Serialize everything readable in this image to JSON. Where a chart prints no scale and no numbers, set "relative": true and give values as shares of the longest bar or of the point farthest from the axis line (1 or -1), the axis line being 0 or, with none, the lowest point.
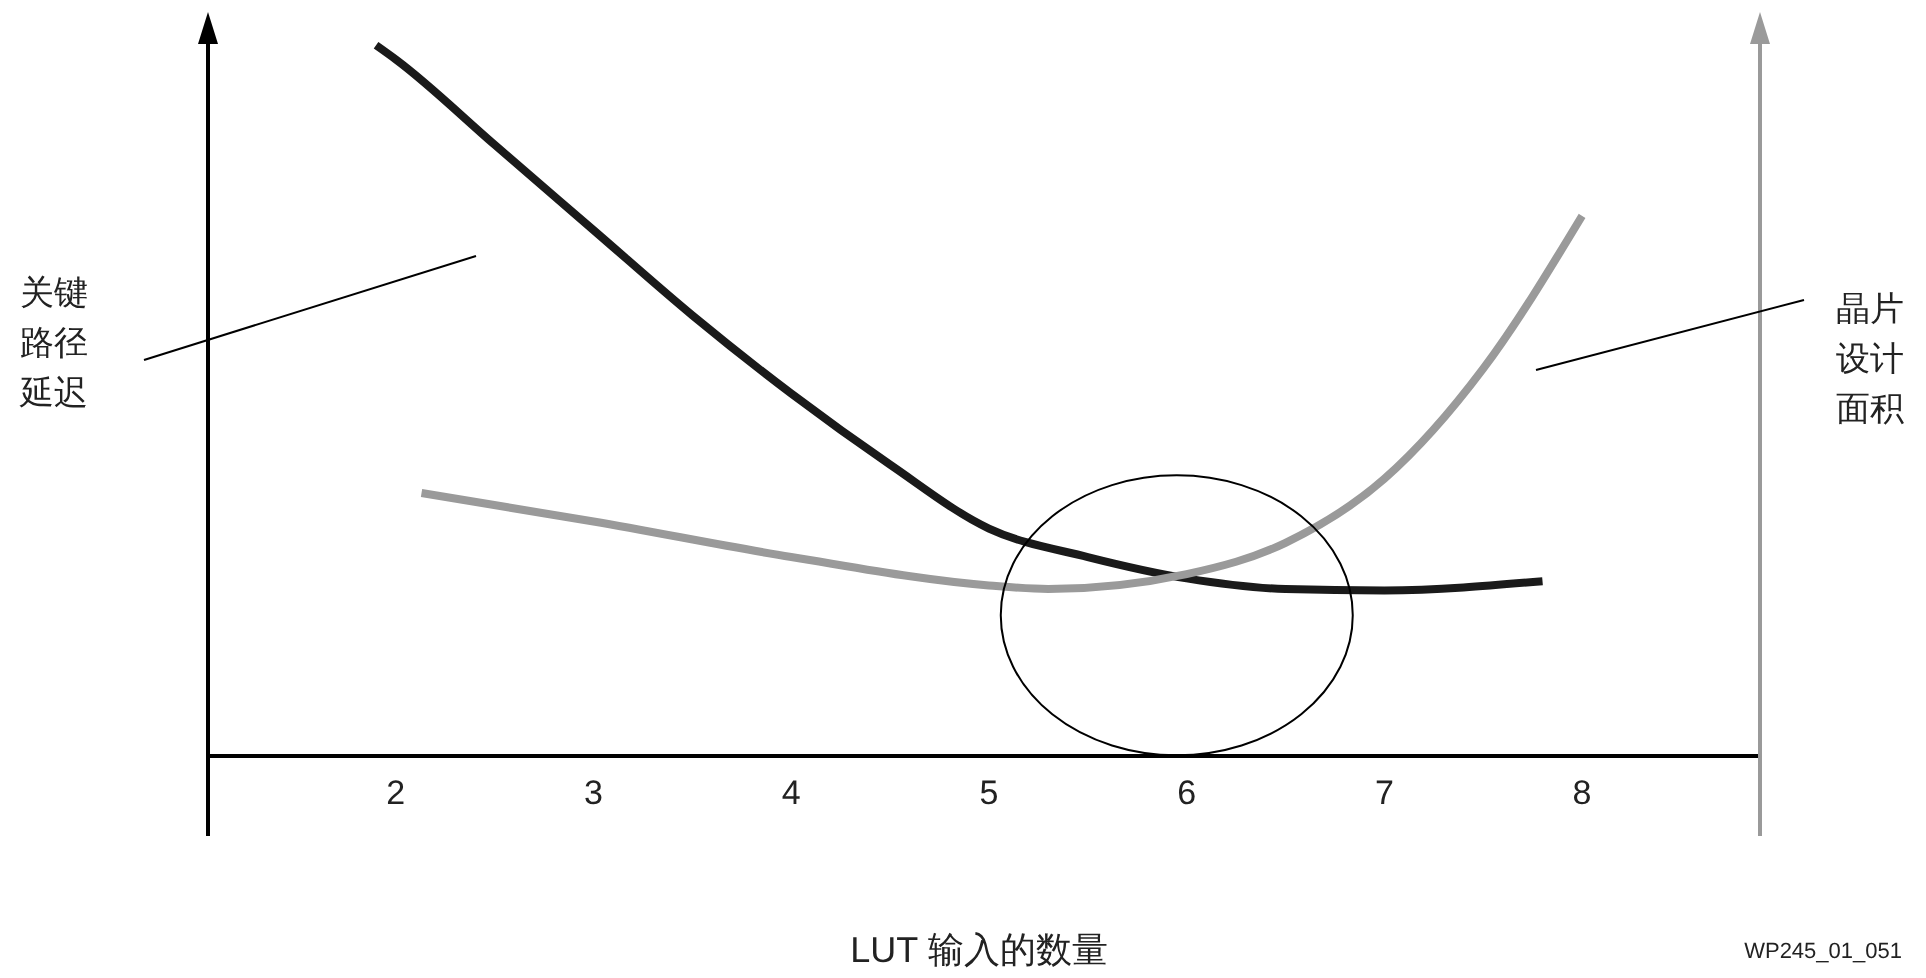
{
  "chart_data": {
    "type": "line",
    "relative": true,
    "xlabel": "LUT 输入的数量",
    "ylabel": "关键路径延迟",
    "y2label": "晶片设计面积",
    "xlim": [
      1.05,
      8.9
    ],
    "xticks": [
      2,
      3,
      4,
      5,
      6,
      7,
      8
    ],
    "tick_labels": "x",
    "marker": "none",
    "line_style": "solid",
    "annotations": [
      "WP245_01_051"
    ],
    "series": [
      {
        "color": "#1a1a1a",
        "x": [
          1.9,
          2,
          2.5,
          3,
          3.5,
          4,
          4.5,
          5,
          5.5,
          6,
          6.5,
          7,
          7.8
        ],
        "values": [
          1,
          0.98,
          0.86,
          0.74,
          0.62,
          0.51,
          0.41,
          0.32,
          0.28,
          0.25,
          0.235,
          0.233,
          0.246
        ]
      },
      {
        "color": "#9a9a9a",
        "axis": "y2",
        "x": [
          2.13,
          3,
          4,
          5,
          5.3,
          6,
          6.5,
          7,
          7.5,
          8
        ],
        "values": [
          0.37,
          0.33,
          0.28,
          0.24,
          0.235,
          0.256,
          0.3,
          0.39,
          0.545,
          0.76
        ]
      }
    ]
  }
}
